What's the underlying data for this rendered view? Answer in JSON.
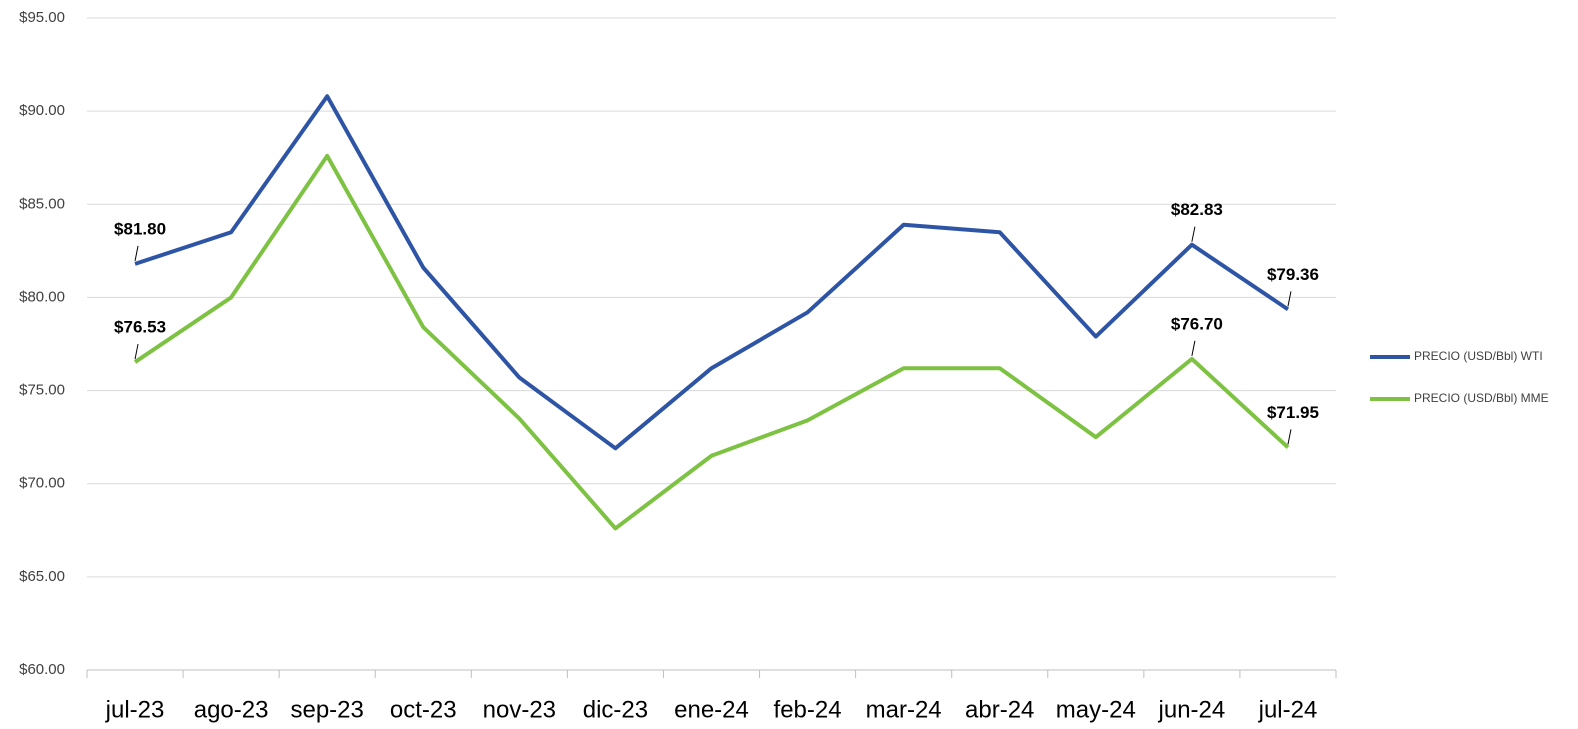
{
  "chart_data": {
    "type": "line",
    "categories": [
      "jul-23",
      "ago-23",
      "sep-23",
      "oct-23",
      "nov-23",
      "dic-23",
      "ene-24",
      "feb-24",
      "mar-24",
      "abr-24",
      "may-24",
      "jun-24",
      "jul-24"
    ],
    "series": [
      {
        "name": "PRECIO (USD/Bbl) WTI",
        "color": "#2e55a5",
        "values": [
          81.8,
          83.5,
          90.8,
          81.6,
          75.7,
          71.9,
          76.2,
          79.2,
          83.9,
          83.5,
          77.9,
          82.83,
          79.36
        ],
        "value_labels": [
          "$81.80",
          null,
          null,
          null,
          null,
          null,
          null,
          null,
          null,
          null,
          null,
          "$82.83",
          "$79.36"
        ]
      },
      {
        "name": "PRECIO (USD/Bbl) MME",
        "color": "#7dc242",
        "values": [
          76.53,
          80.0,
          87.6,
          78.4,
          73.5,
          67.6,
          71.5,
          73.4,
          76.2,
          76.2,
          72.5,
          76.7,
          71.95
        ],
        "value_labels": [
          "$76.53",
          null,
          null,
          null,
          null,
          null,
          null,
          null,
          null,
          null,
          null,
          "$76.70",
          "$71.95"
        ]
      }
    ],
    "ylim": [
      60,
      95
    ],
    "yticks": [
      {
        "value": 60,
        "label": "$60.00"
      },
      {
        "value": 65,
        "label": "$65.00"
      },
      {
        "value": 70,
        "label": "$70.00"
      },
      {
        "value": 75,
        "label": "$75.00"
      },
      {
        "value": 80,
        "label": "$80.00"
      },
      {
        "value": 85,
        "label": "$85.00"
      },
      {
        "value": 90,
        "label": "$90.00"
      },
      {
        "value": 95,
        "label": "$95.00"
      }
    ],
    "grid": true,
    "legend": "right"
  }
}
